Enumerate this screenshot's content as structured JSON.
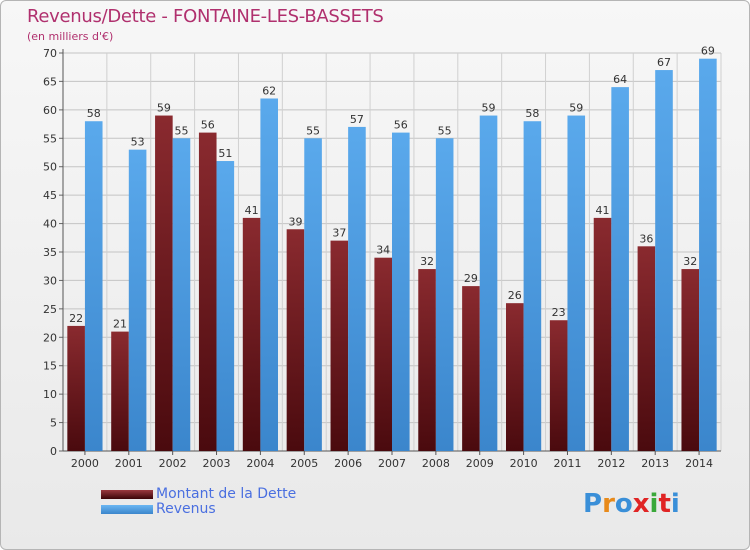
{
  "title": "Revenus/Dette - FONTAINE-LES-BASSETS",
  "subtitle": "(en milliers d'€)",
  "logo_text": "Proxiti",
  "colors": {
    "dette": "#7a1f24",
    "dette_dark": "#4a0a0e",
    "revenus": "#4a9be0",
    "revenus_light": "#5aa9ec",
    "title": "#b0306e",
    "legend_text": "#4a6fe0"
  },
  "chart_data": {
    "type": "bar",
    "title": "Revenus/Dette - FONTAINE-LES-BASSETS",
    "subtitle": "(en milliers d'€)",
    "categories": [
      "2000",
      "2001",
      "2002",
      "2003",
      "2004",
      "2005",
      "2006",
      "2007",
      "2008",
      "2009",
      "2010",
      "2011",
      "2012",
      "2013",
      "2014"
    ],
    "series": [
      {
        "name": "Montant de la Dette",
        "values": [
          22,
          21,
          59,
          56,
          41,
          39,
          37,
          34,
          32,
          29,
          26,
          23,
          41,
          36,
          32
        ]
      },
      {
        "name": "Revenus",
        "values": [
          58,
          53,
          55,
          51,
          62,
          55,
          57,
          56,
          55,
          59,
          58,
          59,
          64,
          67,
          69
        ]
      }
    ],
    "ylim": [
      0,
      70
    ],
    "yticks": [
      0,
      5,
      10,
      15,
      20,
      25,
      30,
      35,
      40,
      45,
      50,
      55,
      60,
      65,
      70
    ],
    "grid": true,
    "legend_position": "bottom-left",
    "data_labels": true
  }
}
